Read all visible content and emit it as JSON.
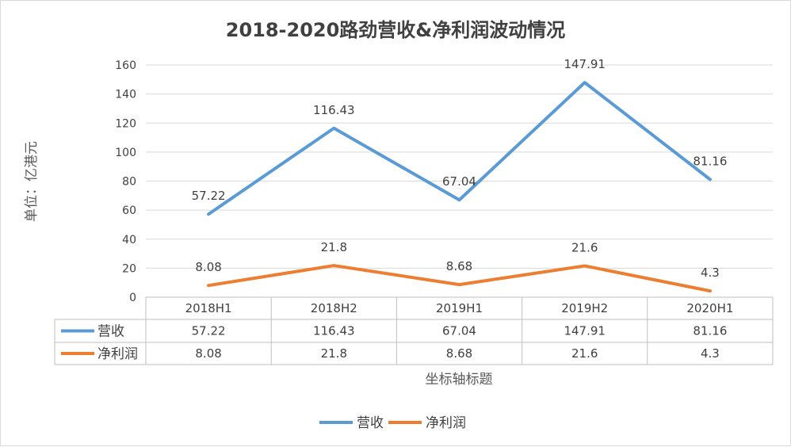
{
  "chart_data": {
    "type": "line",
    "title": "2018-2020路劲营收&净利润波动情况",
    "ylabel": "单位：亿港元",
    "xlabel": "坐标轴标题",
    "categories": [
      "2018H1",
      "2018H2",
      "2019H1",
      "2019H2",
      "2020H1"
    ],
    "ylim": [
      0,
      160
    ],
    "yticks": [
      0,
      20,
      40,
      60,
      80,
      100,
      120,
      140,
      160
    ],
    "grid": true,
    "legend_position": "bottom",
    "data_table": true,
    "series": [
      {
        "name": "营收",
        "color": "#5b9bd5",
        "values": [
          57.22,
          116.43,
          67.04,
          147.91,
          81.16
        ],
        "labels": [
          "57.22",
          "116.43",
          "67.04",
          "147.91",
          "81.16"
        ]
      },
      {
        "name": "净利润",
        "color": "#ed7d31",
        "values": [
          8.08,
          21.8,
          8.68,
          21.6,
          4.3
        ],
        "labels": [
          "8.08",
          "21.8",
          "8.68",
          "21.6",
          "4.3"
        ]
      }
    ]
  }
}
